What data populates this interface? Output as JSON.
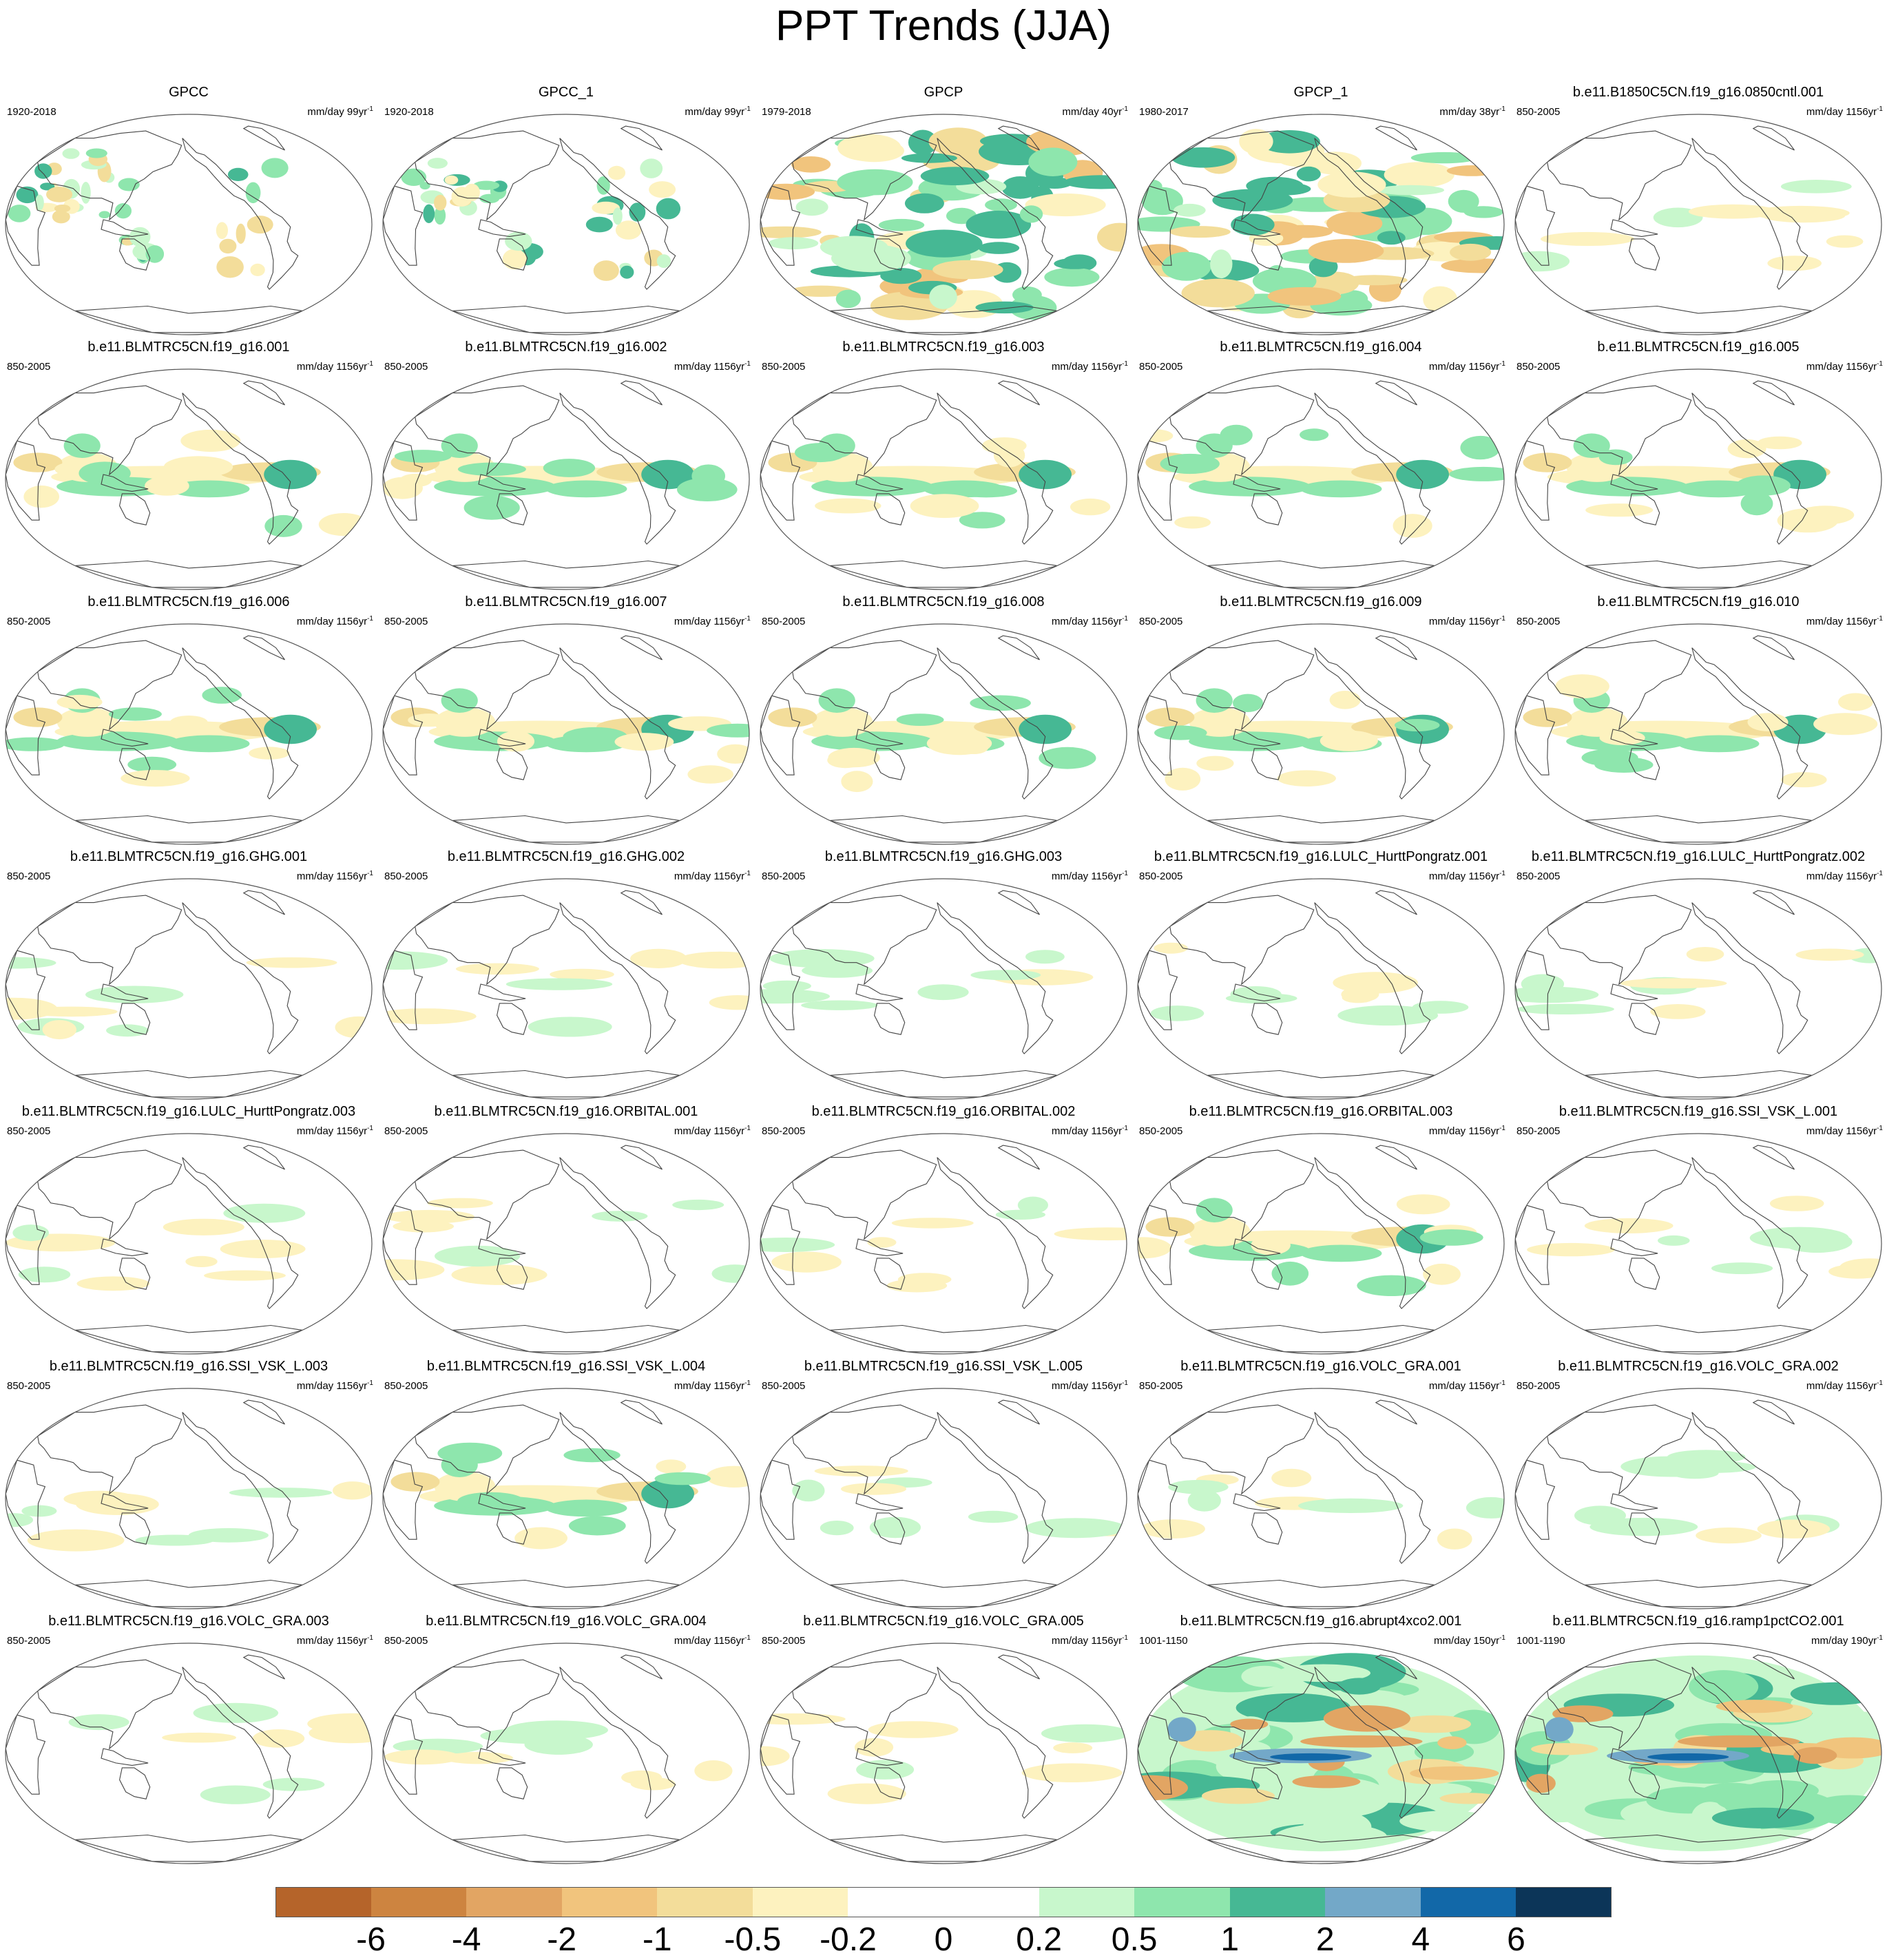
{
  "title": "PPT Trends (JJA)",
  "chart_data": {
    "type": "heatmap",
    "title": "PPT Trends (JJA)",
    "projection": "robinson-like global maps, Pacific-centered",
    "panels": [
      {
        "title": "GPCC",
        "period": "1920-2018",
        "units": "mm/day 99yr",
        "exp": "-1",
        "pattern": "obs"
      },
      {
        "title": "GPCC_1",
        "period": "1920-2018",
        "units": "mm/day 99yr",
        "exp": "-1",
        "pattern": "obs"
      },
      {
        "title": "GPCP",
        "period": "1979-2018",
        "units": "mm/day 40yr",
        "exp": "-1",
        "pattern": "sat"
      },
      {
        "title": "GPCP_1",
        "period": "1980-2017",
        "units": "mm/day 38yr",
        "exp": "-1",
        "pattern": "sat"
      },
      {
        "title": "b.e11.B1850C5CN.f19_g16.0850cntl.001",
        "period": "850-2005",
        "units": "mm/day 1156yr",
        "exp": "-1",
        "pattern": "weak"
      },
      {
        "title": "b.e11.BLMTRC5CN.f19_g16.001",
        "period": "850-2005",
        "units": "mm/day 1156yr",
        "exp": "-1",
        "pattern": "model"
      },
      {
        "title": "b.e11.BLMTRC5CN.f19_g16.002",
        "period": "850-2005",
        "units": "mm/day 1156yr",
        "exp": "-1",
        "pattern": "model"
      },
      {
        "title": "b.e11.BLMTRC5CN.f19_g16.003",
        "period": "850-2005",
        "units": "mm/day 1156yr",
        "exp": "-1",
        "pattern": "model"
      },
      {
        "title": "b.e11.BLMTRC5CN.f19_g16.004",
        "period": "850-2005",
        "units": "mm/day 1156yr",
        "exp": "-1",
        "pattern": "model"
      },
      {
        "title": "b.e11.BLMTRC5CN.f19_g16.005",
        "period": "850-2005",
        "units": "mm/day 1156yr",
        "exp": "-1",
        "pattern": "model"
      },
      {
        "title": "b.e11.BLMTRC5CN.f19_g16.006",
        "period": "850-2005",
        "units": "mm/day 1156yr",
        "exp": "-1",
        "pattern": "model"
      },
      {
        "title": "b.e11.BLMTRC5CN.f19_g16.007",
        "period": "850-2005",
        "units": "mm/day 1156yr",
        "exp": "-1",
        "pattern": "model"
      },
      {
        "title": "b.e11.BLMTRC5CN.f19_g16.008",
        "period": "850-2005",
        "units": "mm/day 1156yr",
        "exp": "-1",
        "pattern": "model"
      },
      {
        "title": "b.e11.BLMTRC5CN.f19_g16.009",
        "period": "850-2005",
        "units": "mm/day 1156yr",
        "exp": "-1",
        "pattern": "model"
      },
      {
        "title": "b.e11.BLMTRC5CN.f19_g16.010",
        "period": "850-2005",
        "units": "mm/day 1156yr",
        "exp": "-1",
        "pattern": "model"
      },
      {
        "title": "b.e11.BLMTRC5CN.f19_g16.GHG.001",
        "period": "850-2005",
        "units": "mm/day 1156yr",
        "exp": "-1",
        "pattern": "weak"
      },
      {
        "title": "b.e11.BLMTRC5CN.f19_g16.GHG.002",
        "period": "850-2005",
        "units": "mm/day 1156yr",
        "exp": "-1",
        "pattern": "weak"
      },
      {
        "title": "b.e11.BLMTRC5CN.f19_g16.GHG.003",
        "period": "850-2005",
        "units": "mm/day 1156yr",
        "exp": "-1",
        "pattern": "weak"
      },
      {
        "title": "b.e11.BLMTRC5CN.f19_g16.LULC_HurttPongratz.001",
        "period": "850-2005",
        "units": "mm/day 1156yr",
        "exp": "-1",
        "pattern": "weak"
      },
      {
        "title": "b.e11.BLMTRC5CN.f19_g16.LULC_HurttPongratz.002",
        "period": "850-2005",
        "units": "mm/day 1156yr",
        "exp": "-1",
        "pattern": "weak"
      },
      {
        "title": "b.e11.BLMTRC5CN.f19_g16.LULC_HurttPongratz.003",
        "period": "850-2005",
        "units": "mm/day 1156yr",
        "exp": "-1",
        "pattern": "weak"
      },
      {
        "title": "b.e11.BLMTRC5CN.f19_g16.ORBITAL.001",
        "period": "850-2005",
        "units": "mm/day 1156yr",
        "exp": "-1",
        "pattern": "weak"
      },
      {
        "title": "b.e11.BLMTRC5CN.f19_g16.ORBITAL.002",
        "period": "850-2005",
        "units": "mm/day 1156yr",
        "exp": "-1",
        "pattern": "weak"
      },
      {
        "title": "b.e11.BLMTRC5CN.f19_g16.ORBITAL.003",
        "period": "850-2005",
        "units": "mm/day 1156yr",
        "exp": "-1",
        "pattern": "model"
      },
      {
        "title": "b.e11.BLMTRC5CN.f19_g16.SSI_VSK_L.001",
        "period": "850-2005",
        "units": "mm/day 1156yr",
        "exp": "-1",
        "pattern": "weak"
      },
      {
        "title": "b.e11.BLMTRC5CN.f19_g16.SSI_VSK_L.003",
        "period": "850-2005",
        "units": "mm/day 1156yr",
        "exp": "-1",
        "pattern": "weak"
      },
      {
        "title": "b.e11.BLMTRC5CN.f19_g16.SSI_VSK_L.004",
        "period": "850-2005",
        "units": "mm/day 1156yr",
        "exp": "-1",
        "pattern": "model"
      },
      {
        "title": "b.e11.BLMTRC5CN.f19_g16.SSI_VSK_L.005",
        "period": "850-2005",
        "units": "mm/day 1156yr",
        "exp": "-1",
        "pattern": "weak"
      },
      {
        "title": "b.e11.BLMTRC5CN.f19_g16.VOLC_GRA.001",
        "period": "850-2005",
        "units": "mm/day 1156yr",
        "exp": "-1",
        "pattern": "weak"
      },
      {
        "title": "b.e11.BLMTRC5CN.f19_g16.VOLC_GRA.002",
        "period": "850-2005",
        "units": "mm/day 1156yr",
        "exp": "-1",
        "pattern": "weak"
      },
      {
        "title": "b.e11.BLMTRC5CN.f19_g16.VOLC_GRA.003",
        "period": "850-2005",
        "units": "mm/day 1156yr",
        "exp": "-1",
        "pattern": "weak"
      },
      {
        "title": "b.e11.BLMTRC5CN.f19_g16.VOLC_GRA.004",
        "period": "850-2005",
        "units": "mm/day 1156yr",
        "exp": "-1",
        "pattern": "weak"
      },
      {
        "title": "b.e11.BLMTRC5CN.f19_g16.VOLC_GRA.005",
        "period": "850-2005",
        "units": "mm/day 1156yr",
        "exp": "-1",
        "pattern": "weak"
      },
      {
        "title": "b.e11.BLMTRC5CN.f19_g16.abrupt4xco2.001",
        "period": "1001-1150",
        "units": "mm/day 150yr",
        "exp": "-1",
        "pattern": "strong"
      },
      {
        "title": "b.e11.BLMTRC5CN.f19_g16.ramp1pctCO2.001",
        "period": "1001-1190",
        "units": "mm/day 190yr",
        "exp": "-1",
        "pattern": "strong"
      }
    ],
    "colorbar": {
      "labels": [
        "-6",
        "-4",
        "-2",
        "-1",
        "-0.5",
        "-0.2",
        "0",
        "0.2",
        "0.5",
        "1",
        "2",
        "4",
        "6"
      ],
      "colors": [
        "#b5642a",
        "#cd8440",
        "#e2a563",
        "#f1c47d",
        "#f3dd9a",
        "#fdf2bf",
        "#ffffff",
        "#ffffff",
        "#c8f7cc",
        "#8ee6ad",
        "#46b894",
        "#73a8c8",
        "#1268a8",
        "#0c3558"
      ]
    }
  }
}
